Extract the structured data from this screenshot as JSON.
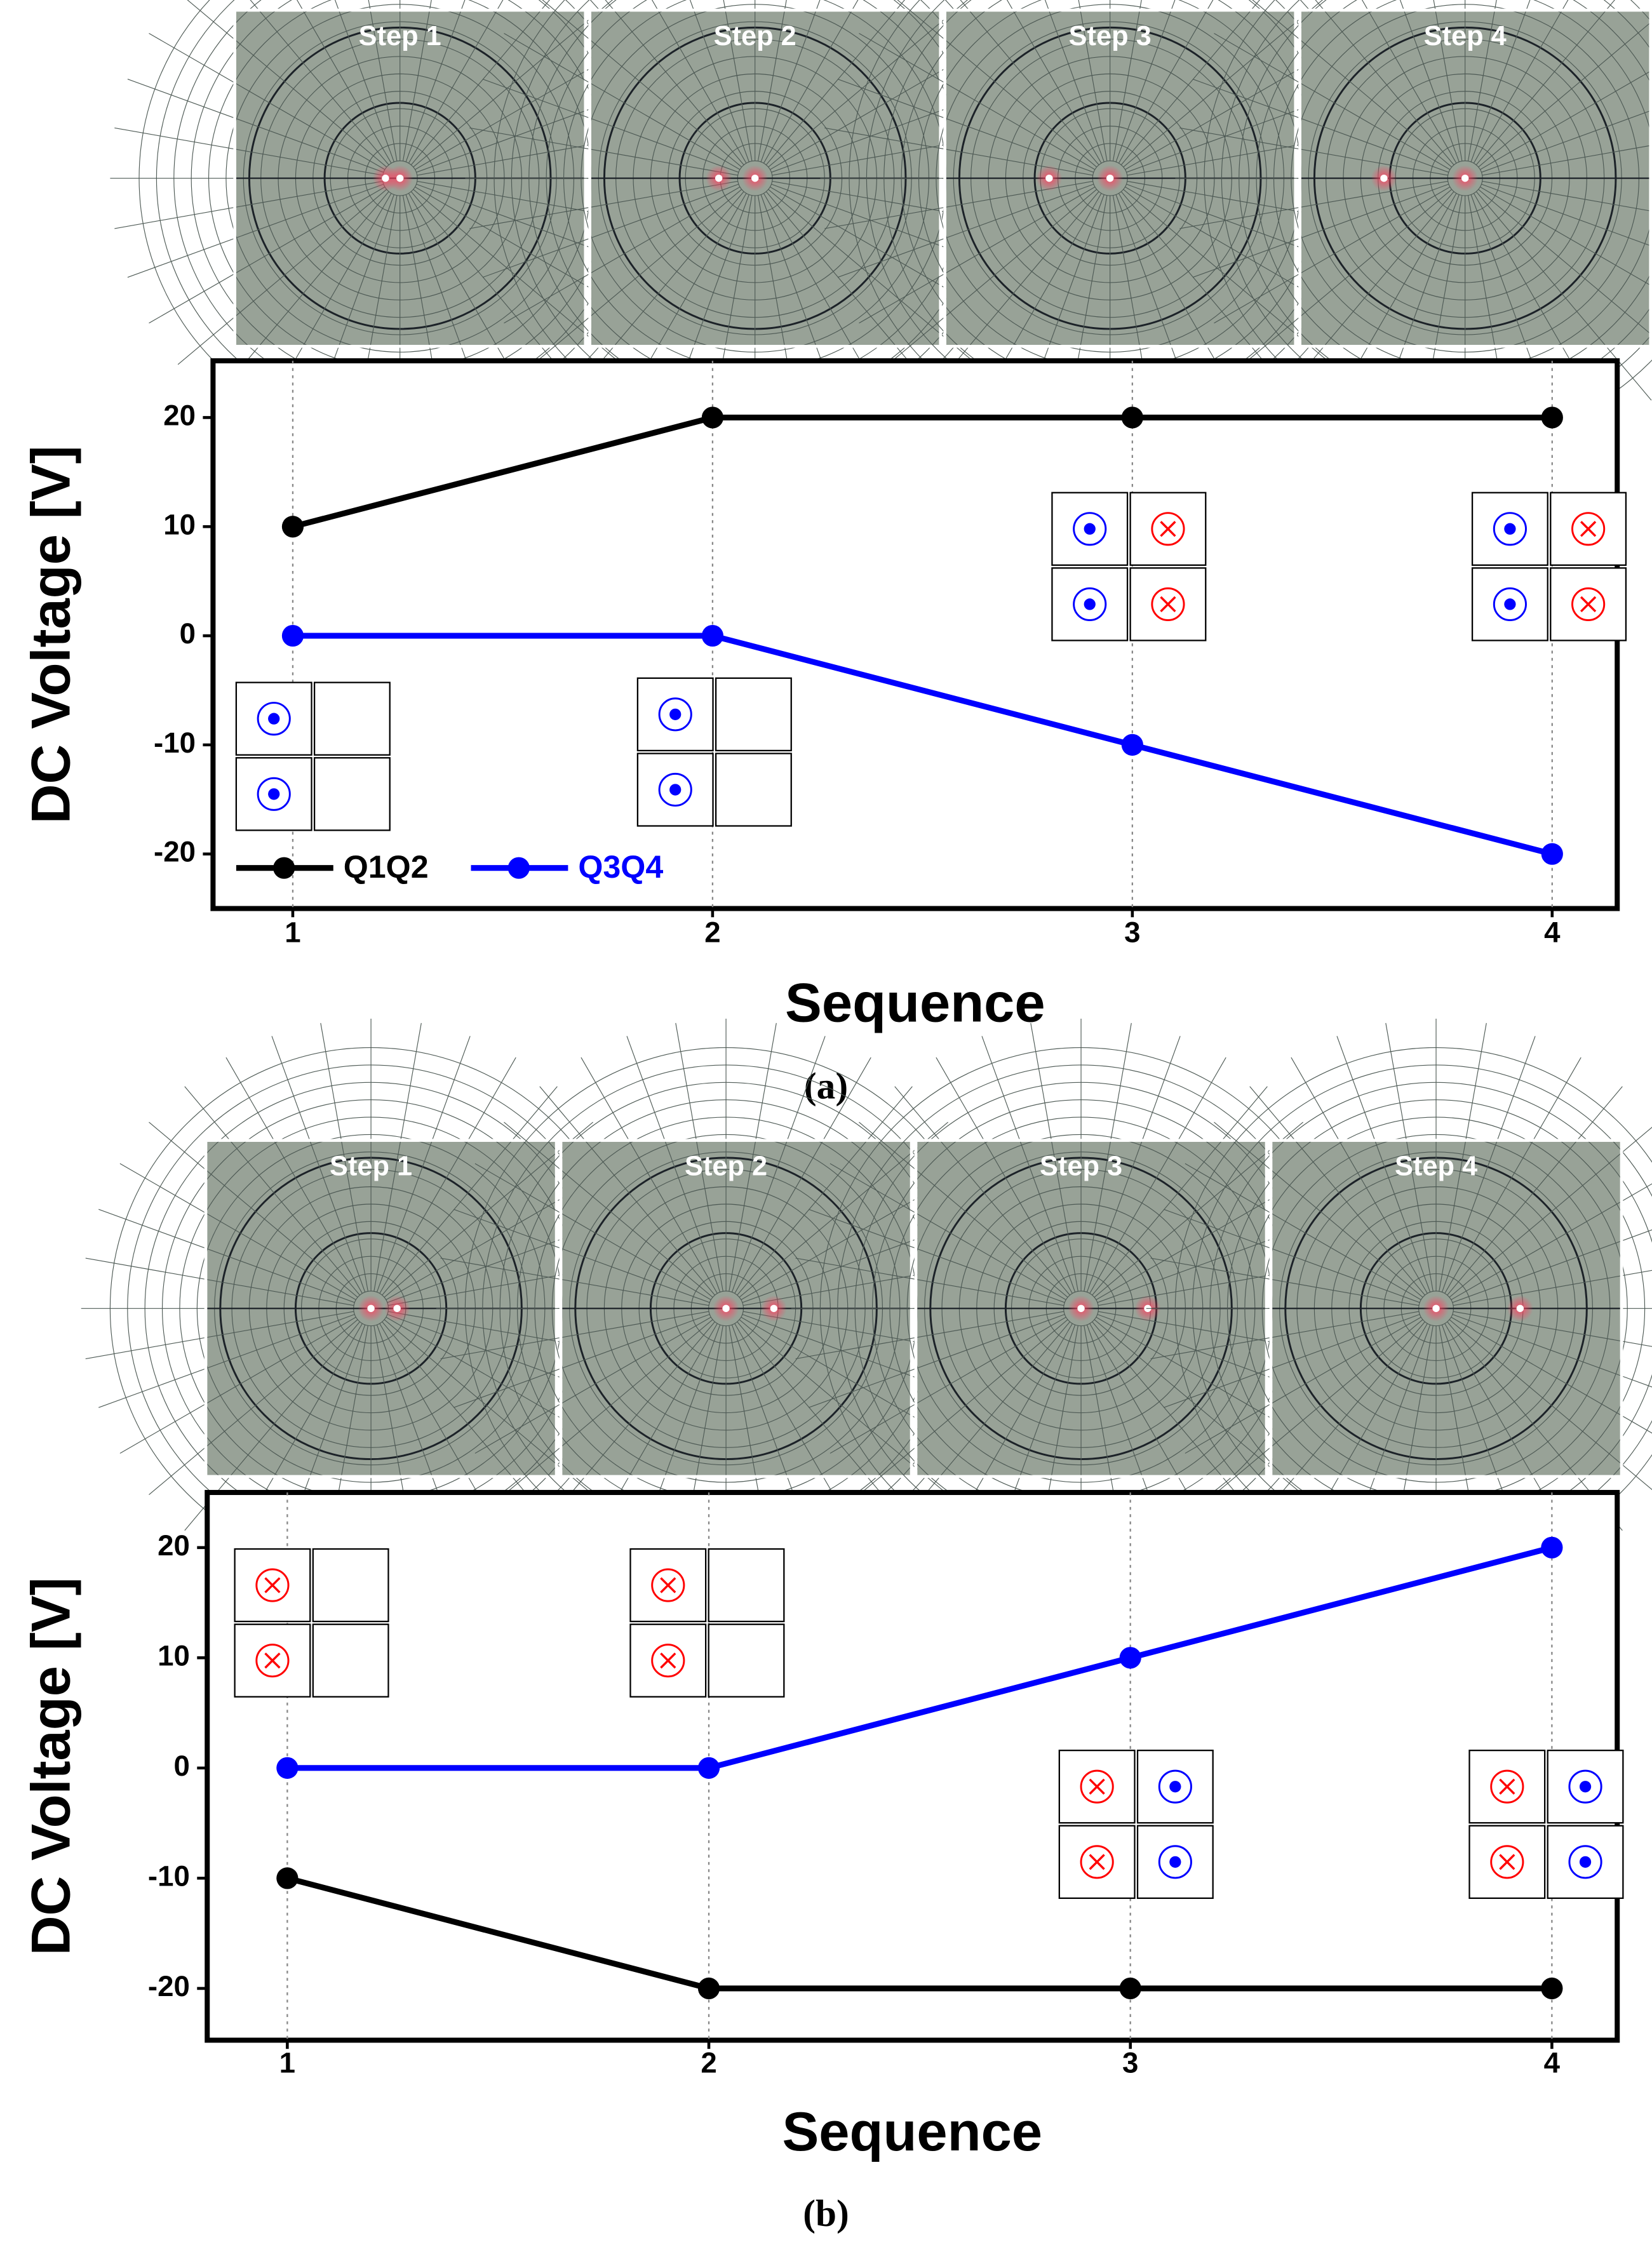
{
  "chart_data": [
    {
      "type": "line",
      "annotations": [
        "Step 1",
        "Step 2",
        "Step 3",
        "Step 4"
      ],
      "x": [
        1,
        2,
        3,
        4
      ],
      "xlabel": "Sequence",
      "ylabel": "DC Voltage [V]",
      "caption": "(a)",
      "series": [
        {
          "name": "Q1Q2",
          "color": "#000000",
          "values": [
            10,
            20,
            20,
            20
          ]
        },
        {
          "name": "Q3Q4",
          "color": "#0000ff",
          "values": [
            0,
            0,
            -10,
            -20
          ]
        }
      ],
      "xlim": [
        0.81,
        4.155
      ],
      "xticks": [
        1,
        2,
        3,
        4
      ],
      "ylim": [
        -25,
        25.2
      ],
      "yticks": [
        -20,
        -10,
        0,
        10,
        20
      ],
      "grid": "x",
      "legend": "lower left"
    },
    {
      "type": "line",
      "annotations": [
        "Step 1",
        "Step 2",
        "Step 3",
        "Step 4"
      ],
      "x": [
        1,
        2,
        3,
        4
      ],
      "xlabel": "Sequence",
      "ylabel": "DC Voltage [V]",
      "caption": "(b)",
      "series": [
        {
          "color": "#000000",
          "values": [
            -10,
            -20,
            -20,
            -20
          ]
        },
        {
          "color": "#0000ff",
          "values": [
            0,
            0,
            10,
            20
          ]
        }
      ],
      "xlim": [
        0.81,
        4.155
      ],
      "xticks": [
        1,
        2,
        3,
        4
      ],
      "ylim": [
        -24.7,
        25
      ],
      "yticks": [
        -20,
        -10,
        0,
        10,
        20
      ],
      "grid": "x"
    }
  ]
}
